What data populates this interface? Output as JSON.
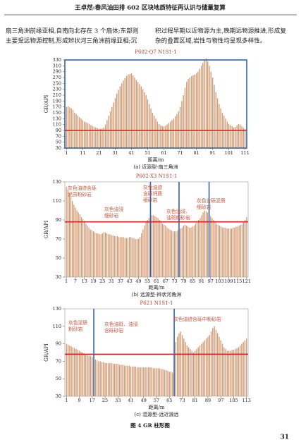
{
  "header": {
    "title": "王卓然:春风油田排 602 区块地质特征再认识与储量复算"
  },
  "body": {
    "left": [
      "扇三角洲前缘亚相,自南向北存在 3 个扇体;东部则",
      "主要受远物源控制,形成辫状河三角洲前缘亚相;沉"
    ],
    "right": [
      "积过程早期以近物源为主,晚期远物源推进,形成复",
      "杂的叠置区域,岩性与物性均呈现多样性。"
    ]
  },
  "chart_data": [
    {
      "type": "bar",
      "title": "P602-Q7 N1S1-1",
      "y_label": "GR/API",
      "x_label": "距离/m",
      "caption": "(a) 近源型-扇三角洲",
      "color": "#d49a72",
      "frame_color": "#2f62b0",
      "x": [
        1,
        2,
        3,
        4,
        5,
        6,
        7,
        8,
        9,
        10,
        11,
        12,
        13,
        14,
        15,
        16,
        17,
        18,
        19,
        20,
        21,
        22,
        23,
        24,
        25,
        26,
        27,
        28,
        29,
        30,
        31,
        32,
        33,
        34,
        35,
        36,
        37,
        38,
        39,
        40,
        41,
        42,
        43,
        44,
        45,
        46,
        47,
        48,
        49,
        50,
        51,
        52,
        53,
        54,
        55,
        56,
        57,
        58,
        59,
        60,
        61,
        62,
        63,
        64,
        65,
        66,
        67,
        68,
        69,
        70,
        71,
        72,
        73,
        74,
        75,
        76,
        77,
        78,
        79,
        80,
        81,
        82,
        83,
        84,
        85,
        86,
        87,
        88,
        89,
        90,
        91,
        92,
        93,
        94,
        95,
        96,
        97,
        98,
        99,
        100,
        101,
        102,
        103,
        104,
        105,
        106,
        107,
        108,
        109,
        110,
        111
      ],
      "values": [
        170,
        172,
        168,
        165,
        160,
        150,
        145,
        140,
        135,
        130,
        125,
        120,
        118,
        115,
        112,
        108,
        105,
        102,
        100,
        98,
        96,
        95,
        97,
        100,
        110,
        125,
        140,
        155,
        170,
        185,
        200,
        215,
        228,
        240,
        250,
        260,
        268,
        275,
        280,
        282,
        285,
        278,
        270,
        262,
        255,
        248,
        240,
        230,
        220,
        210,
        195,
        180,
        165,
        150,
        140,
        130,
        120,
        112,
        108,
        105,
        104,
        106,
        110,
        115,
        120,
        125,
        130,
        138,
        145,
        155,
        170,
        190,
        210,
        235,
        255,
        265,
        270,
        275,
        278,
        280,
        285,
        290,
        300,
        310,
        320,
        330,
        335,
        325,
        310,
        290,
        270,
        245,
        220,
        200,
        180,
        165,
        150,
        140,
        130,
        120,
        112,
        108,
        105,
        100,
        102,
        108,
        112,
        110,
        104,
        98,
        95
      ],
      "xlim": [
        0,
        112
      ],
      "xticks": [
        1,
        11,
        21,
        31,
        41,
        51,
        61,
        71,
        81,
        91,
        101,
        111
      ],
      "ylim": [
        30,
        330
      ],
      "yticks": [
        30,
        50,
        70,
        90,
        110,
        130,
        150,
        170,
        190,
        210,
        230,
        250,
        270,
        290,
        310,
        330
      ],
      "reference_line": {
        "value": 90,
        "color": "#d42020"
      },
      "dividers": [],
      "divider_color": "#2f62b0",
      "annotations": []
    },
    {
      "type": "bar",
      "title": "P602-X3 N1S1-1",
      "y_label": "GR/API",
      "x_label": "距离/m",
      "caption": "(b) 远源型-辫状河角洲",
      "color": "#d49a72",
      "frame_color": "#999999",
      "x": [
        1,
        2,
        3,
        4,
        5,
        6,
        7,
        8,
        9,
        10,
        11,
        12,
        13,
        14,
        15,
        16,
        17,
        18,
        19,
        20,
        21,
        22,
        23,
        24,
        25,
        26,
        27,
        28,
        29,
        30,
        31,
        32,
        33,
        34,
        35,
        36,
        37,
        38,
        39,
        40,
        41,
        42,
        43,
        44,
        45,
        46,
        47,
        48,
        49,
        50,
        51,
        52,
        53,
        54,
        55,
        56,
        57,
        58,
        59,
        60,
        61,
        62,
        63,
        64,
        65,
        66,
        67,
        68,
        69,
        70,
        71,
        72,
        73,
        74,
        75,
        76,
        77,
        78,
        79,
        80,
        81,
        82,
        83,
        84,
        85,
        86,
        87,
        88,
        89,
        90,
        91,
        92,
        93,
        94,
        95,
        96,
        97,
        98,
        99,
        100,
        101,
        102,
        103,
        104,
        105,
        106,
        107,
        108,
        109,
        110,
        111,
        112,
        113,
        114,
        115,
        116,
        117,
        118,
        119,
        120,
        121
      ],
      "values": [
        125,
        122,
        118,
        114,
        110,
        106,
        103,
        100,
        98,
        96,
        93,
        91,
        89,
        86,
        84,
        82,
        80,
        79,
        78,
        77,
        76,
        76,
        75,
        75,
        76,
        77,
        77,
        76,
        75,
        75,
        74,
        74,
        73,
        73,
        73,
        72,
        72,
        72,
        72,
        71,
        71,
        71,
        72,
        72,
        71,
        71,
        70,
        70,
        70,
        72,
        76,
        80,
        84,
        88,
        90,
        92,
        94,
        95,
        95,
        94,
        93,
        92,
        90,
        88,
        86,
        85,
        84,
        82,
        81,
        80,
        79,
        78,
        78,
        78,
        79,
        80,
        81,
        82,
        84,
        85,
        84,
        83,
        82,
        82,
        83,
        84,
        86,
        88,
        90,
        92,
        95,
        98,
        100,
        99,
        98,
        96,
        94,
        92,
        90,
        88,
        86,
        85,
        84,
        83,
        82,
        82,
        82,
        81,
        81,
        81,
        81,
        82,
        82,
        83,
        83,
        84,
        85,
        86,
        88,
        90,
        93
      ],
      "xlim": [
        0,
        122
      ],
      "xticks": [
        1,
        7,
        13,
        19,
        25,
        31,
        37,
        43,
        49,
        55,
        61,
        67,
        73,
        79,
        85,
        91,
        97,
        103,
        109,
        115,
        121
      ],
      "ylim": [
        30,
        130
      ],
      "yticks": [
        30,
        50,
        70,
        90,
        110,
        130
      ],
      "reference_line": {
        "value": 88,
        "color": "#d42020"
      },
      "dividers": [
        57,
        76,
        96
      ],
      "divider_color": "#2f62b0",
      "annotations": [
        [
          "灰色油迹含砾",
          "泥质粉砂岩"
        ],
        [
          "灰色油浸",
          "细砂岩"
        ],
        [
          "灰色油迹",
          "含砾钙质",
          "细砂岩"
        ],
        [
          "灰色油浸、",
          "油斑细砂岩"
        ],
        [
          "灰色含砾泥质",
          "细砂岩"
        ]
      ]
    },
    {
      "type": "bar",
      "title": "P621 N1S1-1",
      "y_label": "GR/API",
      "x_label": "距离/m",
      "caption": "(c) 混源型-远近源远",
      "color": "#d49a72",
      "frame_color": "#999999",
      "x": [
        1,
        2,
        3,
        4,
        5,
        6,
        7,
        8,
        9,
        10,
        11,
        12,
        13,
        14,
        15,
        16,
        17,
        18,
        19,
        20,
        21,
        22,
        23,
        24,
        25,
        26,
        27,
        28,
        29,
        30,
        31,
        32,
        33,
        34,
        35,
        36,
        37,
        38,
        39,
        40,
        41,
        42,
        43,
        44,
        45,
        46,
        47,
        48,
        49,
        50,
        51,
        52,
        53,
        54,
        55,
        56,
        57,
        58,
        59,
        60,
        61,
        62,
        63,
        64,
        65,
        66,
        67,
        68,
        69,
        70,
        71,
        72,
        73,
        74,
        75,
        76,
        77,
        78,
        79,
        80,
        81,
        82,
        83,
        84,
        85,
        86,
        87,
        88,
        89,
        90,
        91,
        92,
        93,
        94,
        95,
        96,
        97,
        98,
        99,
        100,
        101,
        102,
        103,
        104,
        105,
        106,
        107,
        108,
        109,
        110,
        111,
        112,
        113
      ],
      "values": [
        90,
        89,
        88,
        87,
        86,
        85,
        84,
        83,
        82,
        81,
        80,
        79,
        78,
        77,
        76,
        76,
        75,
        73,
        72,
        71,
        70,
        70,
        69,
        69,
        68,
        68,
        68,
        68,
        68,
        67,
        67,
        67,
        67,
        66,
        66,
        66,
        65,
        65,
        65,
        65,
        64,
        64,
        64,
        64,
        63,
        63,
        63,
        63,
        63,
        63,
        63,
        63,
        63,
        63,
        62,
        62,
        62,
        62,
        62,
        61,
        61,
        60,
        60,
        59,
        58,
        58,
        57,
        55,
        92,
        98,
        102,
        104,
        100,
        96,
        92,
        88,
        86,
        84,
        82,
        80,
        82,
        84,
        86,
        88,
        90,
        92,
        94,
        96,
        98,
        100,
        104,
        108,
        110,
        106,
        102,
        98,
        94,
        90,
        86,
        84,
        82,
        82,
        82,
        83,
        83,
        84,
        85,
        86,
        88,
        90,
        92,
        94,
        96
      ],
      "xlim": [
        0,
        114
      ],
      "xticks": [
        1,
        9,
        17,
        25,
        33,
        41,
        49,
        57,
        65,
        73,
        81,
        89,
        97,
        105,
        113
      ],
      "ylim": [
        30,
        130
      ],
      "yticks": [
        30,
        50,
        70,
        90,
        110,
        130
      ],
      "reference_line": {
        "value": 78,
        "color": "#d42020"
      },
      "dividers": [
        18,
        68
      ],
      "divider_color": "#2f62b0",
      "annotations": [
        [
          "灰色泥质",
          "粉砂岩"
        ],
        [
          "灰色油斑、油浸",
          "含砾砂岩"
        ],
        [
          "灰色油迹含砾中粉砂岩"
        ]
      ]
    }
  ],
  "figure_caption": "图 4  GR 柱形图",
  "page_number": "31"
}
